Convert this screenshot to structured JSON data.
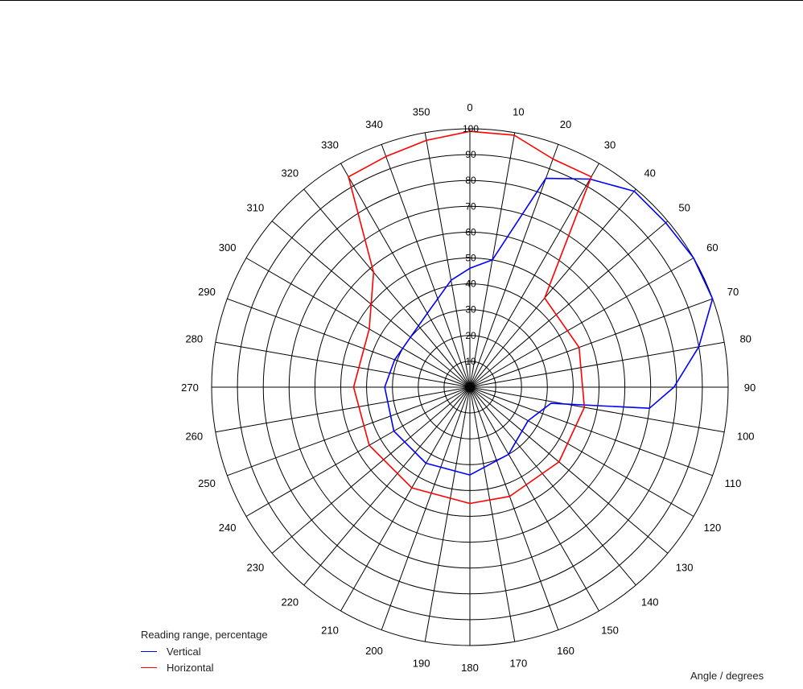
{
  "chart_data": {
    "type": "polar-line",
    "angle_label": "Angle / degrees",
    "legend_title": "Reading range, percentage",
    "angles": [
      0,
      10,
      20,
      30,
      40,
      50,
      60,
      70,
      80,
      90,
      100,
      110,
      120,
      130,
      140,
      150,
      160,
      170,
      180,
      190,
      200,
      210,
      220,
      230,
      240,
      250,
      260,
      270,
      280,
      290,
      300,
      310,
      320,
      330,
      340,
      350
    ],
    "radial_ticks": [
      10,
      20,
      30,
      40,
      50,
      60,
      70,
      80,
      90,
      100
    ],
    "rlim": [
      0,
      100
    ],
    "grid": true,
    "legend_position": "bottom-left",
    "series": [
      {
        "name": "Vertical",
        "color": "#0000ff",
        "points": [
          {
            "angle": 0,
            "value": 46
          },
          {
            "angle": 10,
            "value": 50
          },
          {
            "angle": 20,
            "value": 86
          },
          {
            "angle": 30,
            "value": 93
          },
          {
            "angle": 40,
            "value": 99
          },
          {
            "angle": 50,
            "value": 99
          },
          {
            "angle": 60,
            "value": 100
          },
          {
            "angle": 70,
            "value": 100
          },
          {
            "angle": 80,
            "value": 90
          },
          {
            "angle": 90,
            "value": 79
          },
          {
            "angle": 96.7,
            "value": 70
          },
          {
            "angle": 101.3,
            "value": 32
          },
          {
            "angle": 120,
            "value": 26
          },
          {
            "angle": 150,
            "value": 30
          },
          {
            "angle": 180,
            "value": 34
          },
          {
            "angle": 210,
            "value": 34
          },
          {
            "angle": 240,
            "value": 34
          },
          {
            "angle": 270,
            "value": 33
          },
          {
            "angle": 290,
            "value": 31
          },
          {
            "angle": 330,
            "value": 33
          },
          {
            "angle": 350,
            "value": 42
          }
        ]
      },
      {
        "name": "Horizontal",
        "color": "#ff0000",
        "points": [
          {
            "angle": 0,
            "value": 99
          },
          {
            "angle": 10,
            "value": 99
          },
          {
            "angle": 20,
            "value": 94
          },
          {
            "angle": 30,
            "value": 94
          },
          {
            "angle": 40,
            "value": 45
          },
          {
            "angle": 70,
            "value": 45
          },
          {
            "angle": 100,
            "value": 45
          },
          {
            "angle": 130,
            "value": 45
          },
          {
            "angle": 160,
            "value": 45
          },
          {
            "angle": 180,
            "value": 45
          },
          {
            "angle": 210,
            "value": 45
          },
          {
            "angle": 240,
            "value": 45
          },
          {
            "angle": 270,
            "value": 45
          },
          {
            "angle": 300,
            "value": 45
          },
          {
            "angle": 320,
            "value": 58
          },
          {
            "angle": 330,
            "value": 94
          },
          {
            "angle": 340,
            "value": 95
          },
          {
            "angle": 350,
            "value": 97
          }
        ]
      }
    ]
  }
}
